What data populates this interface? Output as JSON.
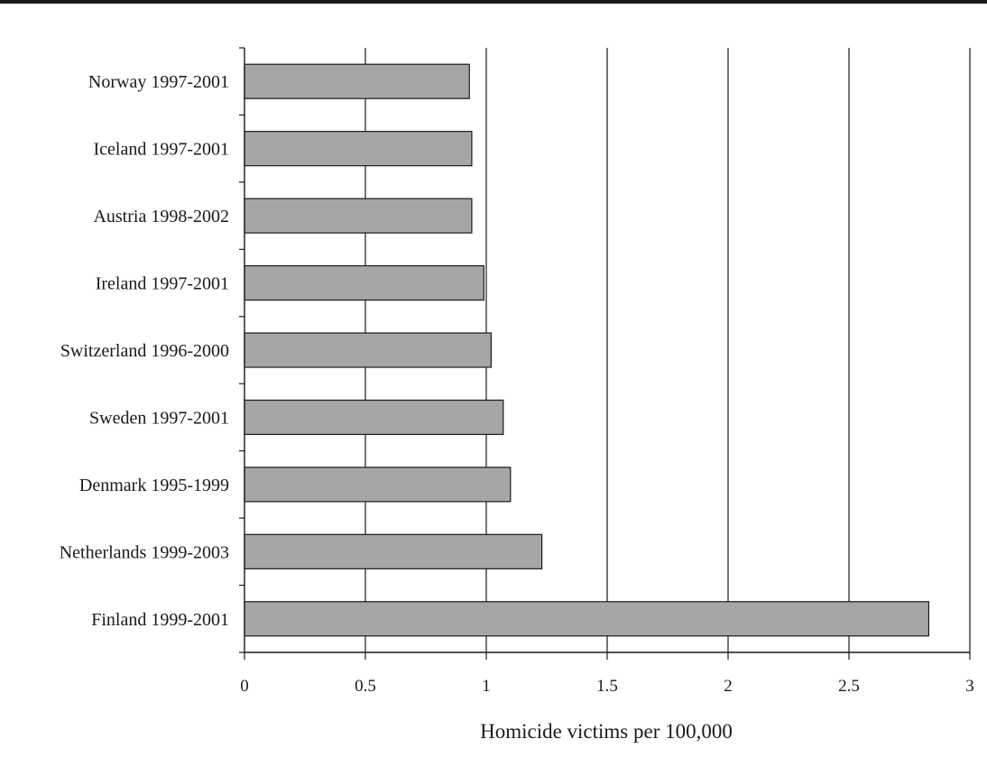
{
  "chart_data": {
    "type": "bar",
    "orientation": "horizontal",
    "title": "",
    "xlabel": "Homicide victims per 100,000",
    "ylabel": "",
    "xlim": [
      0,
      3
    ],
    "x_ticks": [
      "0",
      "0.5",
      "1",
      "1.5",
      "2",
      "2.5",
      "3"
    ],
    "grid": "vertical",
    "categories": [
      "Norway 1997-2001",
      "Iceland 1997-2001",
      "Austria 1998-2002",
      "Ireland 1997-2001",
      "Switzerland 1996-2000",
      "Sweden 1997-2001",
      "Denmark 1995-1999",
      "Netherlands 1999-2003",
      "Finland 1999-2001"
    ],
    "values": [
      0.93,
      0.94,
      0.94,
      0.99,
      1.02,
      1.07,
      1.1,
      1.23,
      2.83
    ],
    "colors": {
      "bar": "#a6a6a8",
      "bar_edge": "#1a1a1a",
      "grid": "#1a1a1a",
      "axis": "#1a1a1a"
    }
  }
}
